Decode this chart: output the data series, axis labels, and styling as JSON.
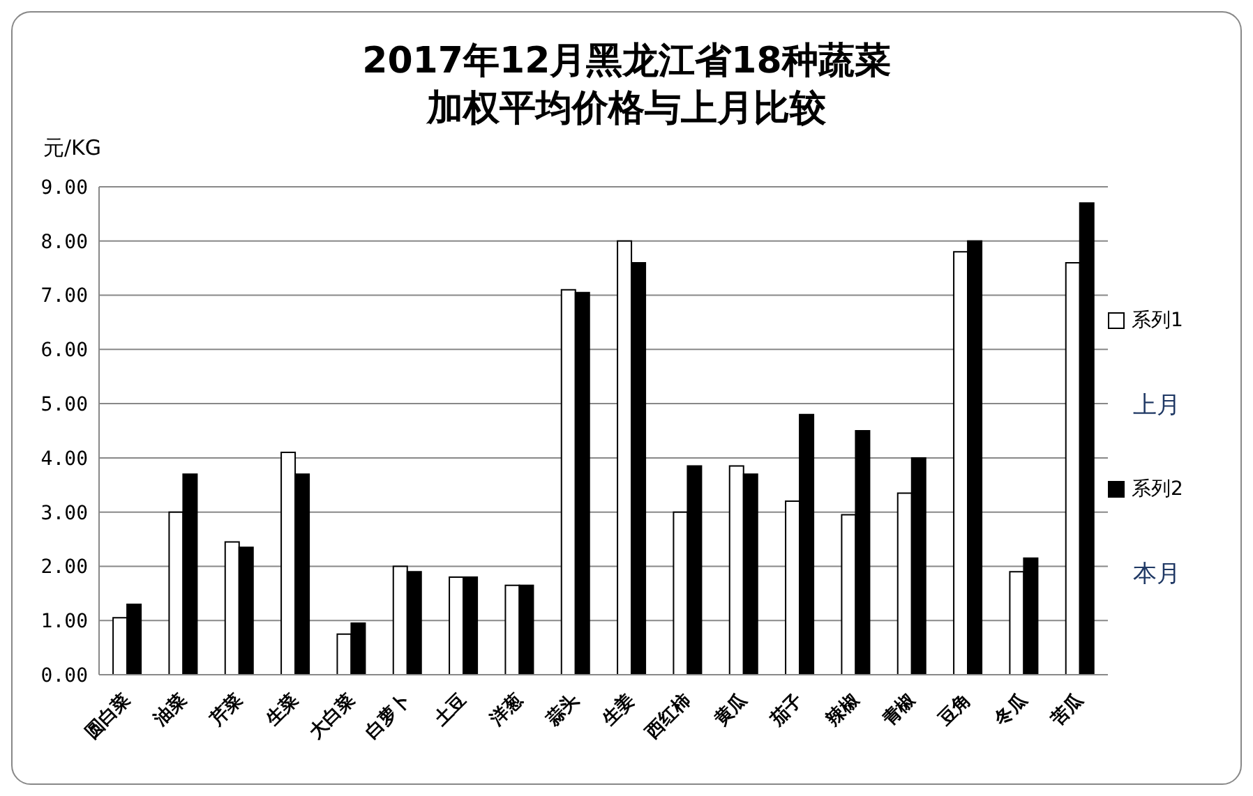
{
  "chart_data": {
    "type": "bar",
    "title": "2017年12月黑龙江省18种蔬菜加权平均价格与上月比较",
    "ylabel": "元/KG",
    "categories": [
      "圆白菜",
      "油菜",
      "芹菜",
      "生菜",
      "大白菜",
      "白萝卜",
      "土豆",
      "洋葱",
      "蒜头",
      "生姜",
      "西红柿",
      "黄瓜",
      "茄子",
      "辣椒",
      "青椒",
      "豆角",
      "冬瓜",
      "苦瓜"
    ],
    "series": [
      {
        "name": "系列1",
        "color": "#ffffff",
        "values": [
          1.05,
          3.0,
          2.45,
          4.1,
          0.75,
          2.0,
          1.8,
          1.65,
          7.1,
          8.0,
          3.0,
          3.85,
          3.2,
          2.95,
          3.35,
          7.8,
          1.9,
          7.6
        ]
      },
      {
        "name": "系列2",
        "color": "#000000",
        "values": [
          1.3,
          3.7,
          2.35,
          3.7,
          0.95,
          1.9,
          1.8,
          1.65,
          7.05,
          7.6,
          3.85,
          3.7,
          4.8,
          4.5,
          4.0,
          8.0,
          2.15,
          8.7
        ]
      }
    ],
    "ylim": [
      0,
      9
    ],
    "yticks": [
      {
        "value": 0,
        "label": "0.00"
      },
      {
        "value": 1,
        "label": "1.00"
      },
      {
        "value": 2,
        "label": "2.00"
      },
      {
        "value": 3,
        "label": "3.00"
      },
      {
        "value": 4,
        "label": "4.00"
      },
      {
        "value": 5,
        "label": "5.00"
      },
      {
        "value": 6,
        "label": "6.00"
      },
      {
        "value": 7,
        "label": "7.00"
      },
      {
        "value": 8,
        "label": "8.00"
      },
      {
        "value": 9,
        "label": "9.00"
      }
    ],
    "grid": "y",
    "legend": "right",
    "annotations": [
      "上月",
      "本月"
    ]
  }
}
